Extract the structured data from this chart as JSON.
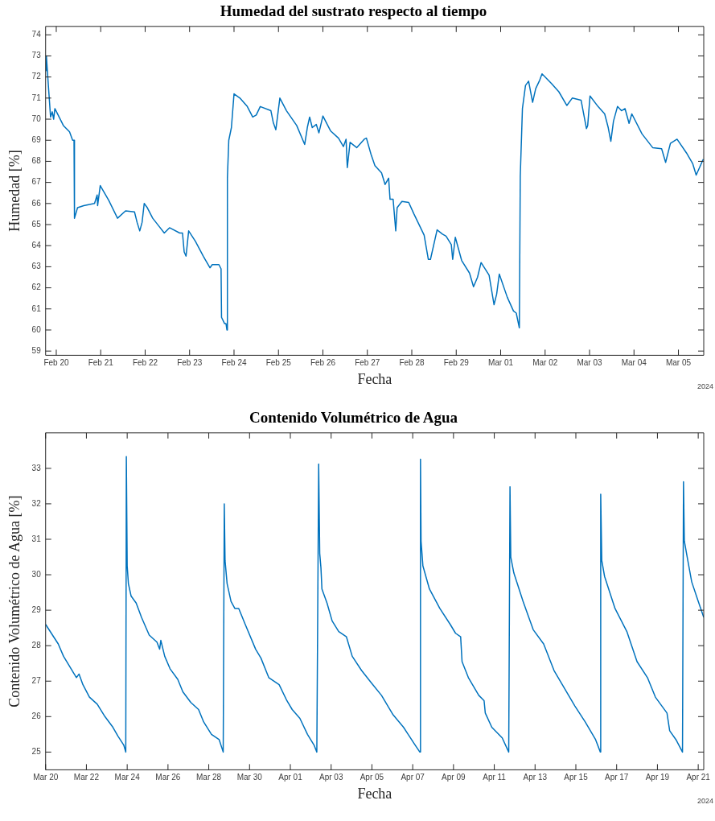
{
  "chart_data": [
    {
      "type": "line",
      "title": "Humedad del sustrato respecto al tiempo",
      "xlabel": "Fecha",
      "ylabel": "Humedad [%]",
      "xlim": [
        "2024-02-19T18:15",
        "2024-03-05T13:40"
      ],
      "ylim": [
        58.8,
        74.4
      ],
      "xticks": [
        {
          "value": "2024-02-20",
          "label": "Feb 20"
        },
        {
          "value": "2024-02-21",
          "label": "Feb 21"
        },
        {
          "value": "2024-02-22",
          "label": "Feb 22"
        },
        {
          "value": "2024-02-23",
          "label": "Feb 23"
        },
        {
          "value": "2024-02-24",
          "label": "Feb 24"
        },
        {
          "value": "2024-02-25",
          "label": "Feb 25"
        },
        {
          "value": "2024-02-26",
          "label": "Feb 26"
        },
        {
          "value": "2024-02-27",
          "label": "Feb 27"
        },
        {
          "value": "2024-02-28",
          "label": "Feb 28"
        },
        {
          "value": "2024-02-29",
          "label": "Feb 29"
        },
        {
          "value": "2024-03-01",
          "label": "Mar 01"
        },
        {
          "value": "2024-03-02",
          "label": "Mar 02"
        },
        {
          "value": "2024-03-03",
          "label": "Mar 03"
        },
        {
          "value": "2024-03-04",
          "label": "Mar 04"
        },
        {
          "value": "2024-03-05",
          "label": "Mar 05"
        }
      ],
      "yticks": [
        59,
        60,
        61,
        62,
        63,
        64,
        65,
        66,
        67,
        68,
        69,
        70,
        71,
        72,
        73,
        74
      ],
      "annotations": [
        "2024"
      ],
      "series": [
        {
          "color": "#0072bd",
          "x": [
            "2024-02-19T18:30",
            "2024-02-19T18:40",
            "2024-02-19T19:25",
            "2024-02-19T20:55",
            "2024-02-19T21:50",
            "2024-02-19T22:35",
            "2024-02-19T23:15",
            "2024-02-20T01:00",
            "2024-02-20T03:50",
            "2024-02-20T07:10",
            "2024-02-20T08:50",
            "2024-02-20T09:35",
            "2024-02-20T09:50",
            "2024-02-20T11:30",
            "2024-02-20T14:50",
            "2024-02-20T20:40",
            "2024-02-20T22:05",
            "2024-02-20T22:20",
            "2024-02-20T23:45",
            "2024-02-21T04:20",
            "2024-02-21T09:05",
            "2024-02-21T13:25",
            "2024-02-21T18:15",
            "2024-02-21T19:40",
            "2024-02-21T21:05",
            "2024-02-21T22:20",
            "2024-02-21T23:30",
            "2024-02-22T01:10",
            "2024-02-22T04:05",
            "2024-02-22T07:40",
            "2024-02-22T10:20",
            "2024-02-22T13:10",
            "2024-02-22T18:40",
            "2024-02-22T20:10",
            "2024-02-22T21:05",
            "2024-02-22T22:05",
            "2024-02-22T23:30",
            "2024-02-23T03:10",
            "2024-02-23T07:25",
            "2024-02-23T11:00",
            "2024-02-23T12:15",
            "2024-02-23T15:50",
            "2024-02-23T17:00",
            "2024-02-23T17:15",
            "2024-02-23T18:55",
            "2024-02-23T19:40",
            "2024-02-23T20:10",
            "2024-02-23T20:25",
            "2024-02-23T21:10",
            "2024-02-23T22:35",
            "2024-02-24T00:00",
            "2024-02-24T03:10",
            "2024-02-24T07:10",
            "2024-02-24T10:05",
            "2024-02-24T12:00",
            "2024-02-24T14:10",
            "2024-02-24T19:55",
            "2024-02-24T21:10",
            "2024-02-24T22:35",
            "2024-02-25T00:45",
            "2024-02-25T04:20",
            "2024-02-25T09:50",
            "2024-02-25T14:10",
            "2024-02-25T15:35",
            "2024-02-25T16:50",
            "2024-02-25T18:15",
            "2024-02-25T20:25",
            "2024-02-25T21:50",
            "2024-02-26T00:00",
            "2024-02-26T04:05",
            "2024-02-26T08:25",
            "2024-02-26T11:05",
            "2024-02-26T12:30",
            "2024-02-26T13:10",
            "2024-02-26T14:40",
            "2024-02-26T18:15",
            "2024-02-26T22:20",
            "2024-02-26T23:30",
            "2024-02-27T01:55",
            "2024-02-27T04:05",
            "2024-02-27T07:40",
            "2024-02-27T09:35",
            "2024-02-27T11:30",
            "2024-02-27T12:15",
            "2024-02-27T13:55",
            "2024-02-27T15:20",
            "2024-02-27T16:05",
            "2024-02-27T18:40",
            "2024-02-27T22:20",
            "2024-02-28T01:10",
            "2024-02-28T06:40",
            "2024-02-28T08:55",
            "2024-02-28T10:05",
            "2024-02-28T13:40",
            "2024-02-28T16:35",
            "2024-02-28T18:30",
            "2024-02-28T21:20",
            "2024-02-28T22:05",
            "2024-02-28T23:30",
            "2024-02-29T02:55",
            "2024-02-29T07:10",
            "2024-02-29T09:20",
            "2024-02-29T11:30",
            "2024-02-29T13:25",
            "2024-02-29T17:45",
            "2024-02-29T20:25",
            "2024-02-29T21:50",
            "2024-02-29T23:15",
            "2024-03-01T03:35",
            "2024-03-01T06:55",
            "2024-03-01T08:25",
            "2024-03-01T10:05",
            "2024-03-01T10:35",
            "2024-03-01T11:45",
            "2024-03-01T13:25",
            "2024-03-01T15:05",
            "2024-03-01T17:15",
            "2024-03-01T18:55",
            "2024-03-01T21:05",
            "2024-03-01T22:20",
            "2024-03-02T03:20",
            "2024-03-02T07:25",
            "2024-03-02T11:45",
            "2024-03-02T14:40",
            "2024-03-02T19:25",
            "2024-03-02T22:20",
            "2024-03-02T23:00",
            "2024-03-03T00:15",
            "2024-03-03T04:35",
            "2024-03-03T08:10",
            "2024-03-03T10:05",
            "2024-03-03T11:30",
            "2024-03-03T12:55",
            "2024-03-03T15:05",
            "2024-03-03T17:15",
            "2024-03-03T19:10",
            "2024-03-03T21:20",
            "2024-03-03T22:50",
            "2024-03-04T04:20",
            "2024-03-04T10:05",
            "2024-03-04T14:55",
            "2024-03-04T17:05",
            "2024-03-04T19:40",
            "2024-03-04T23:15",
            "2024-03-05T04:20",
            "2024-03-05T07:40",
            "2024-03-05T09:35",
            "2024-03-05T13:25"
          ],
          "values": [
            72.3,
            73.0,
            72.0,
            70.1,
            70.35,
            70.0,
            70.5,
            70.2,
            69.7,
            69.4,
            69.0,
            69.0,
            65.3,
            65.8,
            65.9,
            66.0,
            66.4,
            65.9,
            66.85,
            66.15,
            65.3,
            65.65,
            65.6,
            65.1,
            64.7,
            65.1,
            66.0,
            65.8,
            65.3,
            64.9,
            64.6,
            64.85,
            64.6,
            64.6,
            63.7,
            63.5,
            64.7,
            64.2,
            63.5,
            62.95,
            63.1,
            63.1,
            62.9,
            60.6,
            60.3,
            60.3,
            60.0,
            67.2,
            69.0,
            69.6,
            71.2,
            71.0,
            70.6,
            70.1,
            70.2,
            70.6,
            70.4,
            69.85,
            69.5,
            71.0,
            70.4,
            69.7,
            68.8,
            69.6,
            70.1,
            69.6,
            69.75,
            69.35,
            70.15,
            69.45,
            69.1,
            68.7,
            69.05,
            67.7,
            68.9,
            68.65,
            69.05,
            69.1,
            68.35,
            67.8,
            67.45,
            66.9,
            67.2,
            66.2,
            66.2,
            64.7,
            65.8,
            66.1,
            66.05,
            65.5,
            64.5,
            63.35,
            63.35,
            64.75,
            64.55,
            64.45,
            64.05,
            63.35,
            64.4,
            63.3,
            62.7,
            62.05,
            62.5,
            63.2,
            62.6,
            61.2,
            61.7,
            62.65,
            61.55,
            60.9,
            60.8,
            60.1,
            67.3,
            70.5,
            71.6,
            71.8,
            70.8,
            71.45,
            71.85,
            72.15,
            71.7,
            71.3,
            70.65,
            71.0,
            70.9,
            69.55,
            69.7,
            71.1,
            70.6,
            70.25,
            69.6,
            68.95,
            69.9,
            70.6,
            70.4,
            70.5,
            69.8,
            70.25,
            69.3,
            68.65,
            68.6,
            67.95,
            68.85,
            69.05,
            68.4,
            67.9,
            67.35,
            68.1
          ]
        }
      ]
    },
    {
      "type": "line",
      "title": "Contenido Volumétrico de Agua",
      "xlabel": "Fecha",
      "ylabel": "Contenido Volumétrico de Agua [%]",
      "xlim": [
        "2024-03-20",
        "2024-04-21T06:30"
      ],
      "ylim": [
        24.5,
        34
      ],
      "xticks": [
        {
          "value": "2024-03-20",
          "label": "Mar 20"
        },
        {
          "value": "2024-03-22",
          "label": "Mar 22"
        },
        {
          "value": "2024-03-24",
          "label": "Mar 24"
        },
        {
          "value": "2024-03-26",
          "label": "Mar 26"
        },
        {
          "value": "2024-03-28",
          "label": "Mar 28"
        },
        {
          "value": "2024-03-30",
          "label": "Mar 30"
        },
        {
          "value": "2024-04-01",
          "label": "Apr 01"
        },
        {
          "value": "2024-04-03",
          "label": "Apr 03"
        },
        {
          "value": "2024-04-05",
          "label": "Apr 05"
        },
        {
          "value": "2024-04-07",
          "label": "Apr 07"
        },
        {
          "value": "2024-04-09",
          "label": "Apr 09"
        },
        {
          "value": "2024-04-11",
          "label": "Apr 11"
        },
        {
          "value": "2024-04-13",
          "label": "Apr 13"
        },
        {
          "value": "2024-04-15",
          "label": "Apr 15"
        },
        {
          "value": "2024-04-17",
          "label": "Apr 17"
        },
        {
          "value": "2024-04-19",
          "label": "Apr 19"
        },
        {
          "value": "2024-04-21",
          "label": "Apr 21"
        }
      ],
      "yticks": [
        25,
        26,
        27,
        28,
        29,
        30,
        31,
        32,
        33
      ],
      "annotations": [
        "2024"
      ],
      "series": [
        {
          "color": "#0072bd",
          "x": [
            "2024-03-20T00:00",
            "2024-03-20T14:50",
            "2024-03-20T21:05",
            "2024-03-21T12:15",
            "2024-03-21T15:20",
            "2024-03-21T19:55",
            "2024-03-22T03:35",
            "2024-03-22T12:45",
            "2024-03-22T21:50",
            "2024-03-23T07:10",
            "2024-03-23T13:10",
            "2024-03-23T19:55",
            "2024-03-23T22:20",
            "2024-03-23T23:00",
            "2024-03-24T00:00",
            "2024-03-24T01:25",
            "2024-03-24T04:35",
            "2024-03-24T10:35",
            "2024-03-24T16:50",
            "2024-03-25T01:55",
            "2024-03-25T11:00",
            "2024-03-25T14:10",
            "2024-03-25T15:35",
            "2024-03-25T20:10",
            "2024-03-26T02:25",
            "2024-03-26T11:30",
            "2024-03-26T17:30",
            "2024-03-27T02:55",
            "2024-03-27T12:00",
            "2024-03-27T18:00",
            "2024-03-28T03:10",
            "2024-03-28T12:15",
            "2024-03-28T17:00",
            "2024-03-28T18:15",
            "2024-03-28T19:10",
            "2024-03-28T21:35",
            "2024-03-29T02:10",
            "2024-03-29T06:40",
            "2024-03-29T11:15",
            "2024-03-29T18:55",
            "2024-03-30T07:10",
            "2024-03-30T13:25",
            "2024-03-30T22:35",
            "2024-03-31T10:50",
            "2024-03-31T19:55",
            "2024-04-01T02:10",
            "2024-04-01T11:15",
            "2024-04-01T20:10",
            "2024-04-02T03:50",
            "2024-04-02T07:10",
            "2024-04-02T09:20",
            "2024-04-02T10:35",
            "2024-04-02T12:00",
            "2024-04-02T13:10",
            "2024-04-02T19:10",
            "2024-04-03T01:10",
            "2024-04-03T08:55",
            "2024-04-03T18:00",
            "2024-04-04T00:50",
            "2024-04-04T11:50",
            "2024-04-05T00:00",
            "2024-04-05T11:15",
            "2024-04-06T00:55",
            "2024-04-06T13:10",
            "2024-04-07T01:25",
            "2024-04-07T08:25",
            "2024-04-07T09:10",
            "2024-04-07T09:50",
            "2024-04-07T12:00",
            "2024-04-07T19:40",
            "2024-04-08T07:55",
            "2024-04-08T20:10",
            "2024-04-09T02:25",
            "2024-04-09T08:25",
            "2024-04-09T10:05",
            "2024-04-09T17:30",
            "2024-04-10T05:45",
            "2024-04-10T12:00",
            "2024-04-10T13:25",
            "2024-04-10T21:05",
            "2024-04-11T09:20",
            "2024-04-11T17:00",
            "2024-04-11T18:30",
            "2024-04-11T19:25",
            "2024-04-11T23:00",
            "2024-04-12T09:50",
            "2024-04-12T21:50",
            "2024-04-13T10:05",
            "2024-04-13T22:20",
            "2024-04-14T10:35",
            "2024-04-14T22:50",
            "2024-04-15T11:00",
            "2024-04-15T23:15",
            "2024-04-16T04:50",
            "2024-04-16T05:15",
            "2024-04-16T06:30",
            "2024-04-16T09:50",
            "2024-04-16T22:05",
            "2024-04-17T12:00",
            "2024-04-18T00:00",
            "2024-04-18T12:15",
            "2024-04-18T21:35",
            "2024-04-19T11:15",
            "2024-04-19T14:25",
            "2024-04-19T21:50",
            "2024-04-20T05:30",
            "2024-04-20T06:40",
            "2024-04-20T07:40",
            "2024-04-20T11:45",
            "2024-04-20T16:20",
            "2024-04-21T00:00",
            "2024-04-21T06:30"
          ],
          "values": [
            28.6,
            28.05,
            27.7,
            27.1,
            27.2,
            26.9,
            26.55,
            26.35,
            26.0,
            25.7,
            25.45,
            25.2,
            25.0,
            33.33,
            30.25,
            29.75,
            29.4,
            29.2,
            28.8,
            28.3,
            28.1,
            27.9,
            28.15,
            27.7,
            27.35,
            27.05,
            26.7,
            26.4,
            26.2,
            25.85,
            25.5,
            25.35,
            25.0,
            32.0,
            30.4,
            29.75,
            29.25,
            29.05,
            29.05,
            28.6,
            27.9,
            27.65,
            27.1,
            26.9,
            26.45,
            26.2,
            25.95,
            25.5,
            25.2,
            25.0,
            33.12,
            30.6,
            30.2,
            29.6,
            29.2,
            28.7,
            28.4,
            28.25,
            27.7,
            27.3,
            26.93,
            26.6,
            26.05,
            25.7,
            25.25,
            25.0,
            33.26,
            30.95,
            30.25,
            29.6,
            29.05,
            28.6,
            28.35,
            28.25,
            27.55,
            27.1,
            26.6,
            26.45,
            26.1,
            25.7,
            25.4,
            25.0,
            32.48,
            30.5,
            30.05,
            29.25,
            28.45,
            28.05,
            27.3,
            26.8,
            26.3,
            25.85,
            25.35,
            25.0,
            32.27,
            30.4,
            29.95,
            29.05,
            28.4,
            27.55,
            27.1,
            26.55,
            26.1,
            25.6,
            25.35,
            25.0,
            32.62,
            30.95,
            30.4,
            29.8,
            29.25,
            28.8
          ]
        }
      ]
    }
  ]
}
